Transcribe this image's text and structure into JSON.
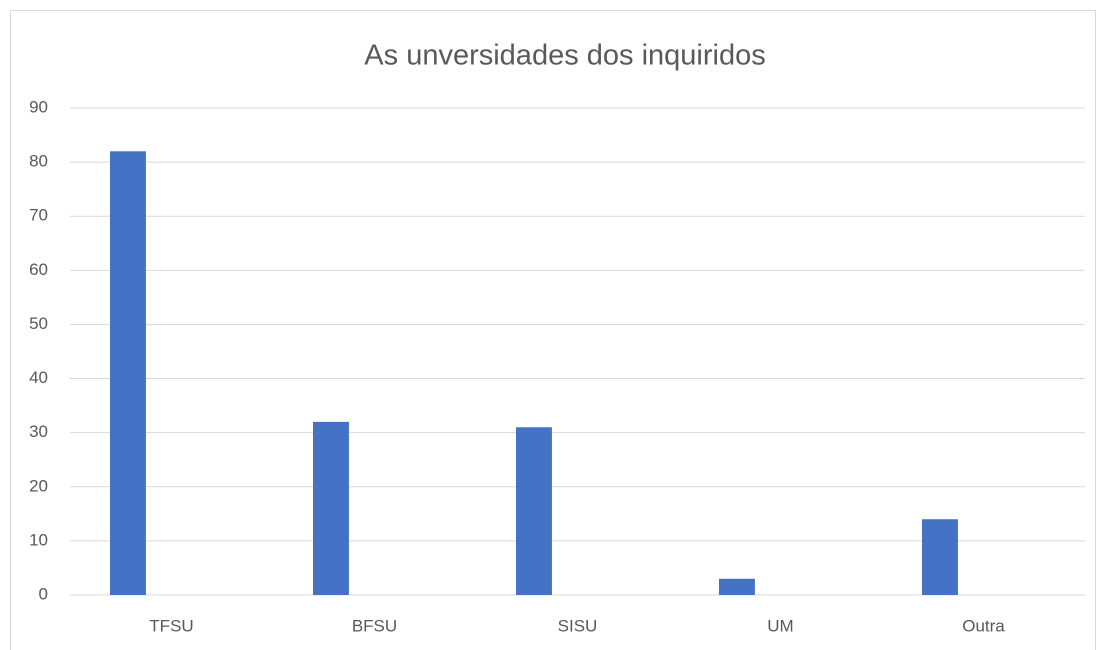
{
  "chart_data": {
    "type": "bar",
    "title": "As unversidades dos inquiridos",
    "categories": [
      "TFSU",
      "BFSU",
      "SISU",
      "UM",
      "Outra"
    ],
    "values": [
      82,
      32,
      31,
      3,
      14
    ],
    "color": "#4472c4",
    "ylim": [
      0,
      90
    ],
    "yticks": [
      0,
      10,
      20,
      30,
      40,
      50,
      60,
      70,
      80,
      90
    ],
    "grid": true
  }
}
